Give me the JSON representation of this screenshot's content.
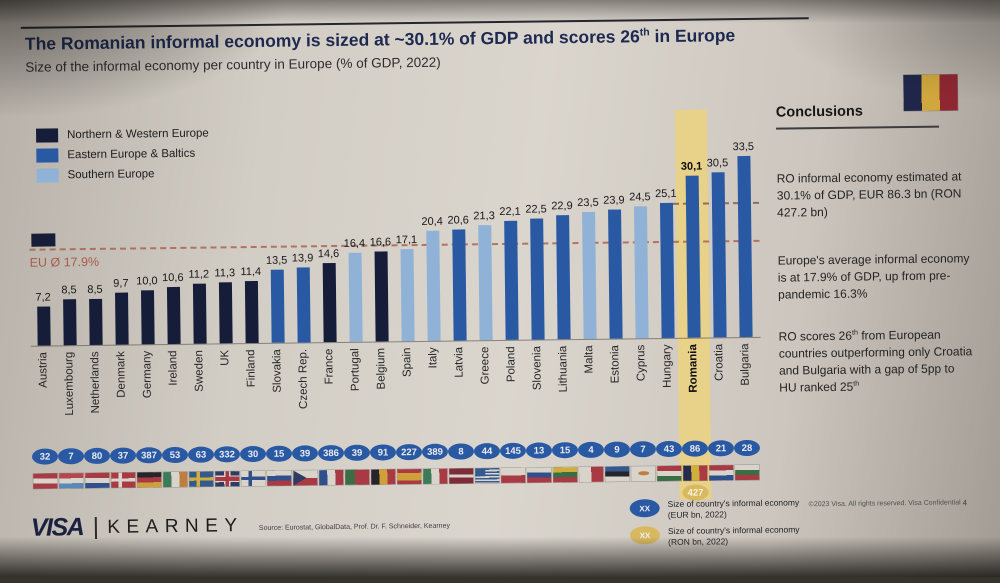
{
  "slide": {
    "title": "The Romanian informal economy is sized at ~30.1% of GDP and scores 26th in Europe",
    "subtitle": "Size of the informal economy per country in Europe (% of GDP, 2022)",
    "page_number": "4",
    "copyright": "©2023 Visa. All rights reserved. Visa Confidential",
    "source": "Source: Eurostat, GlobalData, Prof. Dr. F. Schneider, Kearney",
    "visa_logo": "VISA",
    "kearney_logo": "KEARNEY",
    "corner_flag": {
      "name": "romania-flag",
      "t": "v",
      "s": [
        [
          "#20264a",
          1
        ],
        [
          "#cfa73c",
          1
        ],
        [
          "#8e2732",
          1
        ]
      ]
    }
  },
  "colors": {
    "highlight_band": "#e9d183",
    "eu_line": "#a8604d",
    "gap_line": "#7d5648",
    "oval_blue": "#2a59a4",
    "oval_yellow": "#d9b95f"
  },
  "conclusions": {
    "heading": "Conclusions",
    "bullets": [
      "RO informal economy estimated at 30.1% of GDP, EUR 86.3 bn (RON 427.2 bn)",
      "Europe's average informal economy is at 17.9% of GDP, up from pre-pandemic 16.3%",
      "RO scores 26th from European countries outperforming only Croatia and Bulgaria with a gap of 5pp to HU ranked 25th"
    ]
  },
  "footer_legend": [
    {
      "badge": "XX",
      "type": "eur",
      "label": "Size of country's informal economy (EUR bn, 2022)"
    },
    {
      "badge": "XX",
      "type": "ron",
      "label": "Size of country's informal economy (RON bn, 2022)"
    }
  ],
  "chart_data": {
    "type": "bar",
    "title": "Size of the informal economy per country in Europe (% of GDP, 2022)",
    "ylabel": "% of GDP",
    "ylim": [
      0,
      34
    ],
    "grid": false,
    "legend_position": "top-left",
    "eu_average": {
      "label": "EU Ø 17.9%",
      "value": 17.9
    },
    "gap_reference_line": {
      "value": 25.1,
      "from_country": "Hungary"
    },
    "highlight_country": "Romania",
    "romania_ron_bn": "427",
    "regions": [
      {
        "id": "nw",
        "label": "Northern & Western Europe",
        "color": "#151d38"
      },
      {
        "id": "ee",
        "label": "Eastern Europe & Baltics",
        "color": "#2a59a4"
      },
      {
        "id": "s",
        "label": "Southern Europe",
        "color": "#8fb2d6"
      }
    ],
    "countries": [
      {
        "name": "Austria",
        "value": 7.2,
        "label": "7,2",
        "region": "nw",
        "eur_bn": "32",
        "flag": {
          "t": "h",
          "s": [
            [
              "#a93a44",
              1
            ],
            [
              "#d8d3cb",
              1
            ],
            [
              "#a93a44",
              1
            ]
          ]
        }
      },
      {
        "name": "Luxembourg",
        "value": 8.5,
        "label": "8,5",
        "region": "nw",
        "eur_bn": "7",
        "flag": {
          "t": "h",
          "s": [
            [
              "#b5454e",
              1
            ],
            [
              "#d8d3cb",
              1
            ],
            [
              "#5a88b8",
              1
            ]
          ]
        }
      },
      {
        "name": "Netherlands",
        "value": 8.5,
        "label": "8,5",
        "region": "nw",
        "eur_bn": "80",
        "flag": {
          "t": "h",
          "s": [
            [
              "#a93a44",
              1
            ],
            [
              "#d8d3cb",
              1
            ],
            [
              "#30508c",
              1
            ]
          ]
        }
      },
      {
        "name": "Denmark",
        "value": 9.7,
        "label": "9,7",
        "region": "nw",
        "eur_bn": "37",
        "flag": {
          "t": "nordic",
          "bg": "#a93a44",
          "cross": "#d8d3cb"
        }
      },
      {
        "name": "Germany",
        "value": 10.0,
        "label": "10,0",
        "region": "nw",
        "eur_bn": "387",
        "flag": {
          "t": "h",
          "s": [
            [
              "#24242a",
              1
            ],
            [
              "#a93a44",
              1
            ],
            [
              "#cf9f3a",
              1
            ]
          ]
        }
      },
      {
        "name": "Ireland",
        "value": 10.6,
        "label": "10,6",
        "region": "nw",
        "eur_bn": "53",
        "flag": {
          "t": "v",
          "s": [
            [
              "#3c7a58",
              1
            ],
            [
              "#d8d3cb",
              1
            ],
            [
              "#c07d40",
              1
            ]
          ]
        }
      },
      {
        "name": "Sweden",
        "value": 11.2,
        "label": "11,2",
        "region": "nw",
        "eur_bn": "63",
        "flag": {
          "t": "nordic",
          "bg": "#33598f",
          "cross": "#cfae3c"
        }
      },
      {
        "name": "UK",
        "value": 11.3,
        "label": "11,3",
        "region": "nw",
        "eur_bn": "332",
        "flag": {
          "t": "uk",
          "bg": "#2e3b63",
          "cross": "#a93a44",
          "white": "#d8d3cb"
        }
      },
      {
        "name": "Finland",
        "value": 11.4,
        "label": "11,4",
        "region": "nw",
        "eur_bn": "30",
        "flag": {
          "t": "nordic",
          "bg": "#d8d3cb",
          "cross": "#30508c"
        }
      },
      {
        "name": "Slovakia",
        "value": 13.5,
        "label": "13,5",
        "region": "ee",
        "eur_bn": "15",
        "flag": {
          "t": "h",
          "s": [
            [
              "#d8d3cb",
              1
            ],
            [
              "#30508c",
              1
            ],
            [
              "#a93a44",
              1
            ]
          ]
        }
      },
      {
        "name": "Czech Rep.",
        "value": 13.9,
        "label": "13,9",
        "region": "ee",
        "eur_bn": "39",
        "flag": {
          "t": "cz",
          "top": "#d8d3cb",
          "bottom": "#a93a44",
          "tri": "#2e3b63"
        }
      },
      {
        "name": "France",
        "value": 14.6,
        "label": "14,6",
        "region": "nw",
        "eur_bn": "386",
        "flag": {
          "t": "v",
          "s": [
            [
              "#30508c",
              1
            ],
            [
              "#d8d3cb",
              1
            ],
            [
              "#a93a44",
              1
            ]
          ]
        }
      },
      {
        "name": "Portugal",
        "value": 16.4,
        "label": "16,4",
        "region": "s",
        "eur_bn": "39",
        "flag": {
          "t": "v",
          "s": [
            [
              "#3c6e46",
              2
            ],
            [
              "#a93a44",
              3
            ]
          ]
        }
      },
      {
        "name": "Belgium",
        "value": 16.6,
        "label": "16,6",
        "region": "nw",
        "eur_bn": "91",
        "flag": {
          "t": "v",
          "s": [
            [
              "#24242a",
              1
            ],
            [
              "#cf9f3a",
              1
            ],
            [
              "#a93a44",
              1
            ]
          ]
        }
      },
      {
        "name": "Spain",
        "value": 17.1,
        "label": "17,1",
        "region": "s",
        "eur_bn": "227",
        "flag": {
          "t": "h",
          "s": [
            [
              "#a93a44",
              1
            ],
            [
              "#cf9f3a",
              2
            ],
            [
              "#a93a44",
              1
            ]
          ]
        }
      },
      {
        "name": "Italy",
        "value": 20.4,
        "label": "20,4",
        "region": "s",
        "eur_bn": "389",
        "flag": {
          "t": "v",
          "s": [
            [
              "#3c7a58",
              1
            ],
            [
              "#d8d3cb",
              1
            ],
            [
              "#a93a44",
              1
            ]
          ]
        }
      },
      {
        "name": "Latvia",
        "value": 20.6,
        "label": "20,6",
        "region": "ee",
        "eur_bn": "8",
        "flag": {
          "t": "h",
          "s": [
            [
              "#7e2d38",
              2
            ],
            [
              "#d8d3cb",
              1
            ],
            [
              "#7e2d38",
              2
            ]
          ]
        }
      },
      {
        "name": "Greece",
        "value": 21.3,
        "label": "21,3",
        "region": "s",
        "eur_bn": "44",
        "flag": {
          "t": "gr",
          "a": "#33598f",
          "b": "#d8d3cb"
        }
      },
      {
        "name": "Poland",
        "value": 22.1,
        "label": "22,1",
        "region": "ee",
        "eur_bn": "145",
        "flag": {
          "t": "h",
          "s": [
            [
              "#d8d3cb",
              1
            ],
            [
              "#a93a44",
              1
            ]
          ]
        }
      },
      {
        "name": "Slovenia",
        "value": 22.5,
        "label": "22,5",
        "region": "ee",
        "eur_bn": "13",
        "flag": {
          "t": "h",
          "s": [
            [
              "#d8d3cb",
              1
            ],
            [
              "#30508c",
              1
            ],
            [
              "#a93a44",
              1
            ]
          ]
        }
      },
      {
        "name": "Lithuania",
        "value": 22.9,
        "label": "22,9",
        "region": "ee",
        "eur_bn": "15",
        "flag": {
          "t": "h",
          "s": [
            [
              "#cfae3c",
              1
            ],
            [
              "#3c6e46",
              1
            ],
            [
              "#a93a44",
              1
            ]
          ]
        }
      },
      {
        "name": "Malta",
        "value": 23.5,
        "label": "23,5",
        "region": "s",
        "eur_bn": "4",
        "flag": {
          "t": "v",
          "s": [
            [
              "#d8d3cb",
              1
            ],
            [
              "#a93a44",
              1
            ]
          ]
        }
      },
      {
        "name": "Estonia",
        "value": 23.9,
        "label": "23,9",
        "region": "ee",
        "eur_bn": "9",
        "flag": {
          "t": "h",
          "s": [
            [
              "#33598f",
              1
            ],
            [
              "#24242a",
              1
            ],
            [
              "#d8d3cb",
              1
            ]
          ]
        }
      },
      {
        "name": "Cyprus",
        "value": 24.5,
        "label": "24,5",
        "region": "s",
        "eur_bn": "7",
        "flag": {
          "t": "cy",
          "bg": "#d8d3cb",
          "map": "#c07d40"
        }
      },
      {
        "name": "Hungary",
        "value": 25.1,
        "label": "25,1",
        "region": "ee",
        "eur_bn": "43",
        "flag": {
          "t": "h",
          "s": [
            [
              "#a93a44",
              1
            ],
            [
              "#d8d3cb",
              1
            ],
            [
              "#3c6e46",
              1
            ]
          ]
        }
      },
      {
        "name": "Romania",
        "value": 30.1,
        "label": "30,1",
        "region": "ee",
        "eur_bn": "86",
        "flag": {
          "t": "v",
          "s": [
            [
              "#262b4e",
              1
            ],
            [
              "#cfae3c",
              1
            ],
            [
              "#a93a44",
              1
            ]
          ]
        }
      },
      {
        "name": "Croatia",
        "value": 30.5,
        "label": "30,5",
        "region": "ee",
        "eur_bn": "21",
        "flag": {
          "t": "h",
          "s": [
            [
              "#a93a44",
              1
            ],
            [
              "#d8d3cb",
              1
            ],
            [
              "#30508c",
              1
            ]
          ]
        }
      },
      {
        "name": "Bulgaria",
        "value": 33.5,
        "label": "33,5",
        "region": "ee",
        "eur_bn": "28",
        "flag": {
          "t": "h",
          "s": [
            [
              "#d8d3cb",
              1
            ],
            [
              "#3c6e46",
              1
            ],
            [
              "#a93a44",
              1
            ]
          ]
        }
      }
    ]
  }
}
